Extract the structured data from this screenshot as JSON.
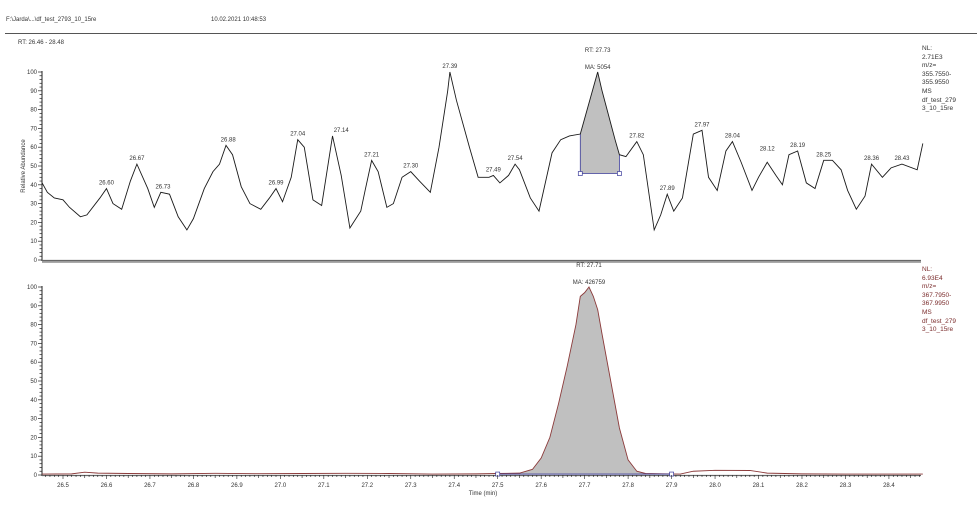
{
  "header": {
    "file_path": "F:\\Jarda\\...\\df_test_2793_10_15re",
    "datetime": "10.02.2021  10:48:53",
    "rt_range": "RT: 26.46 - 28.48"
  },
  "panels": [
    {
      "info": [
        "NL:",
        "2.71E3",
        "m/z=",
        "355.7550-",
        "355.9550",
        "MS",
        "df_test_279",
        "3_10_15re"
      ],
      "info_color": "#333333",
      "apex_rt_label": "RT: 27.73",
      "apex_area_label": "MA: 5054"
    },
    {
      "info": [
        "NL:",
        "6.93E4",
        "m/z=",
        "367.7950-",
        "367.9950",
        "MS",
        "df_test_279",
        "3_10_15re"
      ],
      "info_color": "#7a2b2b",
      "apex_rt_label": "RT: 27.71",
      "apex_area_label": "MA: 426759"
    }
  ],
  "chart_data": [
    {
      "type": "line",
      "title": "Extracted ion chromatogram m/z 355.7550-355.9550",
      "xlabel": "Time (min)",
      "ylabel": "Relative Abundance",
      "xlim": [
        26.46,
        28.48
      ],
      "ylim": [
        0,
        100
      ],
      "yticks": [
        0,
        10,
        20,
        30,
        40,
        50,
        60,
        70,
        80,
        90,
        100
      ],
      "x": [
        26.452,
        26.464,
        26.48,
        26.5,
        26.515,
        26.54,
        26.555,
        26.585,
        26.6,
        26.615,
        26.635,
        26.655,
        26.67,
        26.695,
        26.71,
        26.725,
        26.745,
        26.765,
        26.785,
        26.8,
        26.825,
        26.845,
        26.86,
        26.875,
        26.89,
        26.91,
        26.93,
        26.955,
        26.975,
        26.99,
        27.005,
        27.025,
        27.04,
        27.055,
        27.075,
        27.095,
        27.12,
        27.14,
        27.16,
        27.185,
        27.195,
        27.21,
        27.225,
        27.245,
        27.26,
        27.28,
        27.3,
        27.32,
        27.345,
        27.365,
        27.385,
        27.39,
        27.405,
        27.435,
        27.455,
        27.48,
        27.49,
        27.505,
        27.525,
        27.54,
        27.55,
        27.575,
        27.595,
        27.625,
        27.645,
        27.665,
        27.69,
        27.73,
        27.74,
        27.77,
        27.78,
        27.795,
        27.82,
        27.835,
        27.86,
        27.875,
        27.89,
        27.905,
        27.925,
        27.95,
        27.97,
        27.985,
        28.005,
        28.025,
        28.04,
        28.06,
        28.085,
        28.1,
        28.12,
        28.14,
        28.155,
        28.17,
        28.19,
        28.21,
        28.23,
        28.25,
        28.27,
        28.29,
        28.305,
        28.325,
        28.345,
        28.36,
        28.385,
        28.405,
        28.43,
        28.465,
        28.478
      ],
      "values": [
        41,
        36,
        33,
        32,
        28,
        23,
        24,
        33,
        38,
        30,
        27,
        42,
        51,
        38,
        28,
        36,
        35,
        23,
        16,
        22,
        38,
        47,
        51,
        61,
        56,
        39,
        30,
        27,
        33,
        38,
        31,
        44,
        64,
        60,
        32,
        29,
        66,
        45,
        17,
        26,
        37,
        53,
        47,
        28,
        30,
        44,
        47,
        42,
        36,
        60,
        90,
        100,
        85,
        60,
        44,
        44,
        45,
        41,
        45,
        51,
        48,
        33,
        26,
        57,
        64,
        66,
        67,
        100,
        90,
        64,
        56,
        55,
        63,
        56,
        16,
        24,
        35,
        26,
        33,
        67,
        69,
        44,
        37,
        58,
        63,
        52,
        37,
        44,
        52,
        45,
        40,
        56,
        58,
        41,
        38,
        53,
        53,
        48,
        37,
        27,
        34,
        51,
        44,
        49,
        51,
        48,
        62
      ],
      "peak_labels": [
        {
          "rt": "26.60",
          "x": 26.6,
          "y": 38
        },
        {
          "rt": "26.67",
          "x": 26.67,
          "y": 51
        },
        {
          "rt": "26.73",
          "x": 26.73,
          "y": 36
        },
        {
          "rt": "26.88",
          "x": 26.88,
          "y": 61
        },
        {
          "rt": "26.99",
          "x": 26.99,
          "y": 38
        },
        {
          "rt": "27.04",
          "x": 27.04,
          "y": 64
        },
        {
          "rt": "27.14",
          "x": 27.14,
          "y": 66
        },
        {
          "rt": "27.21",
          "x": 27.21,
          "y": 53
        },
        {
          "rt": "27.30",
          "x": 27.3,
          "y": 47
        },
        {
          "rt": "27.39",
          "x": 27.39,
          "y": 100
        },
        {
          "rt": "27.49",
          "x": 27.49,
          "y": 45
        },
        {
          "rt": "27.54",
          "x": 27.54,
          "y": 51
        },
        {
          "rt": "27.82",
          "x": 27.82,
          "y": 63
        },
        {
          "rt": "27.89",
          "x": 27.89,
          "y": 35
        },
        {
          "rt": "27.97",
          "x": 27.97,
          "y": 69
        },
        {
          "rt": "28.04",
          "x": 28.04,
          "y": 63
        },
        {
          "rt": "28.12",
          "x": 28.12,
          "y": 56
        },
        {
          "rt": "28.19",
          "x": 28.19,
          "y": 58
        },
        {
          "rt": "28.25",
          "x": 28.25,
          "y": 53
        },
        {
          "rt": "28.36",
          "x": 28.36,
          "y": 51
        },
        {
          "rt": "28.43",
          "x": 28.43,
          "y": 51
        }
      ],
      "integrated_peak": {
        "start": 27.69,
        "end": 27.78,
        "baseline": 46,
        "apex_rt": 27.73,
        "area": 5054
      }
    },
    {
      "type": "area",
      "title": "Extracted ion chromatogram m/z 367.7950-367.9950",
      "xlabel": "Time (min)",
      "ylabel": "Relative Abundance",
      "xlim": [
        26.46,
        28.48
      ],
      "ylim": [
        0,
        100
      ],
      "yticks": [
        0,
        10,
        20,
        30,
        40,
        50,
        60,
        70,
        80,
        90,
        100
      ],
      "x": [
        26.452,
        26.52,
        26.55,
        26.58,
        26.65,
        26.75,
        26.85,
        26.95,
        27.05,
        27.15,
        27.25,
        27.35,
        27.45,
        27.5,
        27.55,
        27.58,
        27.6,
        27.62,
        27.64,
        27.66,
        27.68,
        27.69,
        27.7,
        27.71,
        27.72,
        27.73,
        27.74,
        27.76,
        27.78,
        27.8,
        27.82,
        27.84,
        27.88,
        27.92,
        27.95,
        28.0,
        28.08,
        28.12,
        28.2,
        28.3,
        28.4,
        28.478
      ],
      "values": [
        0.5,
        0.6,
        1.5,
        1.0,
        0.8,
        0.6,
        0.9,
        0.7,
        0.8,
        0.9,
        0.8,
        0.5,
        0.6,
        0.8,
        1.0,
        3,
        9,
        20,
        38,
        58,
        80,
        95,
        97,
        100,
        95,
        88,
        75,
        50,
        25,
        8,
        2,
        0.8,
        0.6,
        0.5,
        2.0,
        2.5,
        2.4,
        1.0,
        0.6,
        0.5,
        0.5,
        0.5
      ],
      "integrated_peak": {
        "start": 27.5,
        "end": 27.9,
        "baseline": 0.5,
        "apex_rt": 27.71,
        "area": 426759
      }
    }
  ],
  "x_axis": {
    "label": "Time (min)",
    "ticks": [
      "26.5",
      "26.6",
      "26.7",
      "26.8",
      "26.9",
      "27.0",
      "27.1",
      "27.2",
      "27.3",
      "27.4",
      "27.5",
      "27.6",
      "27.7",
      "27.8",
      "27.9",
      "28.0",
      "28.1",
      "28.2",
      "28.3",
      "28.4"
    ]
  },
  "colors": {
    "trace": "#1a1a1a",
    "fill": "#c0c0c0",
    "bottom_outline": "#8b3a3a",
    "integration_marker": "#3b3b9a",
    "axis": "#222222"
  }
}
